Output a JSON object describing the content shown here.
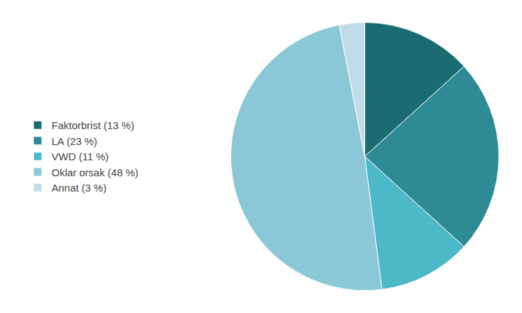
{
  "chart_data": {
    "type": "pie",
    "categories": [
      "Faktorbrist (13 %)",
      "LA (23 %)",
      "VWD (11 %)",
      "Oklar orsak (48 %)",
      "Annat (3 %)"
    ],
    "values": [
      13,
      23,
      11,
      48,
      3
    ],
    "colors": [
      "#1a6b72",
      "#2e8b96",
      "#4db8c8",
      "#8ac8d8",
      "#c0dce8"
    ],
    "legend": "left"
  }
}
